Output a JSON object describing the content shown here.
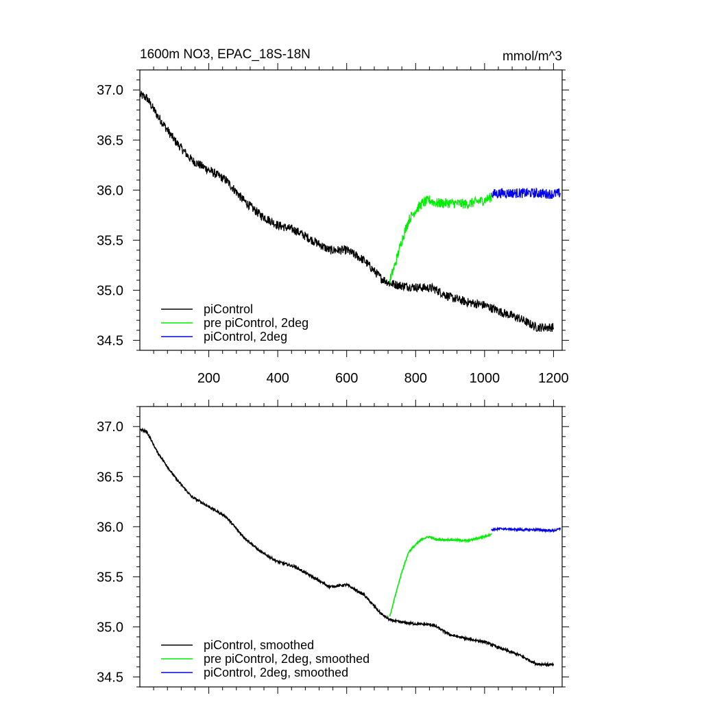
{
  "chart_data": [
    {
      "type": "line",
      "title_left": "1600m NO3, EPAC_18S-18N",
      "title_right": "mmol/m^3",
      "xlim": [
        0,
        1225
      ],
      "ylim": [
        34.4,
        37.2
      ],
      "xticks": [
        200,
        400,
        600,
        800,
        1000,
        1200
      ],
      "xtick_labels": [
        "200",
        "400",
        "600",
        "800",
        "1000",
        "1200"
      ],
      "yticks": [
        34.5,
        35.0,
        35.5,
        36.0,
        36.5,
        37.0
      ],
      "ytick_labels": [
        "34.5",
        "35.0",
        "35.5",
        "36.0",
        "36.5",
        "37.0"
      ],
      "legend_position": "bottom-left",
      "series": [
        {
          "name": "piControl",
          "color": "#000000",
          "noise": 0.045,
          "x": [
            1,
            20,
            50,
            80,
            100,
            150,
            200,
            250,
            300,
            350,
            400,
            450,
            500,
            550,
            600,
            650,
            700,
            725,
            750,
            800,
            850,
            900,
            950,
            1000,
            1050,
            1100,
            1150,
            1200
          ],
          "y": [
            36.95,
            36.92,
            36.75,
            36.6,
            36.5,
            36.3,
            36.2,
            36.1,
            35.9,
            35.75,
            35.65,
            35.6,
            35.5,
            35.4,
            35.4,
            35.3,
            35.12,
            35.07,
            35.05,
            35.03,
            35.02,
            34.93,
            34.88,
            34.85,
            34.78,
            34.72,
            34.63,
            34.63
          ]
        },
        {
          "name": "pre piControl, 2deg",
          "color": "#00ee00",
          "noise": 0.05,
          "x": [
            725,
            740,
            760,
            780,
            800,
            820,
            840,
            860,
            900,
            950,
            1000,
            1020
          ],
          "y": [
            35.1,
            35.25,
            35.5,
            35.7,
            35.8,
            35.87,
            35.9,
            35.87,
            35.87,
            35.86,
            35.9,
            35.93
          ]
        },
        {
          "name": "piControl, 2deg",
          "color": "#0000ee",
          "noise": 0.05,
          "x": [
            1020,
            1050,
            1100,
            1150,
            1200,
            1220
          ],
          "y": [
            35.96,
            35.97,
            35.97,
            35.97,
            35.96,
            35.97
          ]
        }
      ]
    },
    {
      "type": "line",
      "xlim": [
        0,
        1225
      ],
      "ylim": [
        34.4,
        37.2
      ],
      "xticks": [
        200,
        400,
        600,
        800,
        1000,
        1200
      ],
      "yticks": [
        34.5,
        35.0,
        35.5,
        36.0,
        36.5,
        37.0
      ],
      "ytick_labels": [
        "34.5",
        "35.0",
        "35.5",
        "36.0",
        "36.5",
        "37.0"
      ],
      "legend_position": "bottom-left",
      "series": [
        {
          "name": "piControl, smoothed",
          "color": "#000000",
          "noise": 0.012,
          "x": [
            1,
            20,
            50,
            80,
            100,
            150,
            200,
            250,
            300,
            350,
            400,
            450,
            500,
            550,
            600,
            650,
            700,
            725,
            750,
            800,
            850,
            900,
            950,
            1000,
            1050,
            1100,
            1150,
            1200
          ],
          "y": [
            36.97,
            36.95,
            36.75,
            36.6,
            36.5,
            36.3,
            36.2,
            36.1,
            35.9,
            35.75,
            35.65,
            35.6,
            35.5,
            35.4,
            35.42,
            35.32,
            35.13,
            35.07,
            35.05,
            35.03,
            35.02,
            34.92,
            34.88,
            34.85,
            34.78,
            34.72,
            34.63,
            34.62
          ]
        },
        {
          "name": "pre piControl, 2deg, smoothed",
          "color": "#00ee00",
          "noise": 0.01,
          "x": [
            725,
            740,
            760,
            780,
            800,
            820,
            840,
            860,
            900,
            950,
            1000,
            1020
          ],
          "y": [
            35.1,
            35.3,
            35.55,
            35.75,
            35.82,
            35.88,
            35.9,
            35.87,
            35.87,
            35.86,
            35.9,
            35.93
          ]
        },
        {
          "name": "piControl, 2deg, smoothed",
          "color": "#0000ee",
          "noise": 0.01,
          "x": [
            1020,
            1050,
            1100,
            1150,
            1200,
            1220
          ],
          "y": [
            35.97,
            35.98,
            35.97,
            35.97,
            35.96,
            35.98
          ]
        }
      ]
    }
  ]
}
